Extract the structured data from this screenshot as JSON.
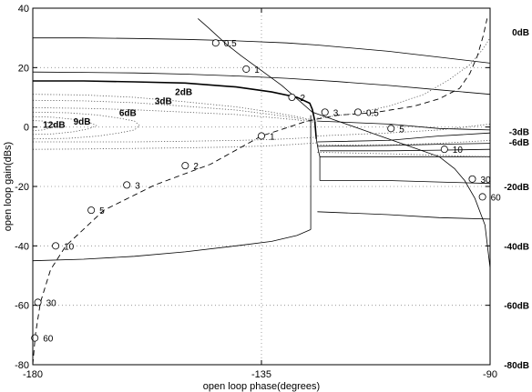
{
  "chart_data": {
    "type": "line",
    "title": "",
    "xlabel": "open loop phase(degrees)",
    "ylabel": "open loop gain(dBs)",
    "xlim": [
      -180,
      -90
    ],
    "ylim": [
      -80,
      40
    ],
    "grid": true,
    "x_ticks": [
      -180,
      -135,
      -90
    ],
    "y_ticks": [
      -80,
      -60,
      -40,
      -20,
      0,
      20,
      40
    ],
    "right_labels": [
      {
        "text": "0dB",
        "y": 32
      },
      {
        "text": "-3dB",
        "y": -1.5
      },
      {
        "text": "-6dB",
        "y": -5
      },
      {
        "text": "-20dB",
        "y": -20
      },
      {
        "text": "-40dB",
        "y": -40
      },
      {
        "text": "-60dB",
        "y": -60
      },
      {
        "text": "-80dB",
        "y": -80
      }
    ],
    "closed_loop_labels": [
      {
        "text": "2dB",
        "x": -152,
        "y": 12
      },
      {
        "text": "3dB",
        "x": -156,
        "y": 9
      },
      {
        "text": "6dB",
        "x": -163,
        "y": 5
      },
      {
        "text": "9dB",
        "x": -172,
        "y": 2
      },
      {
        "text": "12dB",
        "x": -178,
        "y": 1
      }
    ],
    "series": [
      {
        "name": "",
        "style": "solid-thin",
        "x": [
          -180,
          -170,
          -160,
          -150,
          -140,
          -130,
          -124,
          -120,
          -110,
          -100,
          -90
        ],
        "y": [
          30,
          30,
          29.8,
          29.5,
          29,
          28.3,
          27.6,
          27,
          25.5,
          23.5,
          21.5
        ]
      },
      {
        "name": "",
        "style": "solid-thin",
        "x": [
          -180,
          -170,
          -160,
          -150,
          -140,
          -130,
          -120,
          -110,
          -100,
          -90
        ],
        "y": [
          18.5,
          18.4,
          18.2,
          17.8,
          17.2,
          16.4,
          15.3,
          14,
          12.5,
          11
        ]
      },
      {
        "name": "",
        "style": "solid-bold",
        "x": [
          -180,
          -170,
          -160,
          -150,
          -140,
          -133,
          -128,
          -125.5,
          -125,
          -124.5,
          -124.2
        ],
        "y": [
          15.5,
          15.5,
          15.2,
          14.8,
          13.5,
          11.8,
          10,
          8,
          6,
          2,
          -4
        ]
      },
      {
        "name": "",
        "style": "solid-thin",
        "x": [
          -124.2,
          -123.8,
          -123.5,
          -123.5,
          -123.5
        ],
        "y": [
          -4,
          -8,
          -10,
          -14,
          -18
        ]
      },
      {
        "name": "",
        "style": "solid-thin",
        "x": [
          -180,
          -170,
          -160,
          -150,
          -140,
          -133,
          -128,
          -125.3
        ],
        "y": [
          -45,
          -44.5,
          -43.5,
          -42,
          -40,
          -38.5,
          -36.5,
          -34.5
        ]
      },
      {
        "name": "",
        "style": "solid-thin",
        "x": [
          -125.3,
          -125.3,
          -125.3
        ],
        "y": [
          -34.5,
          -15,
          4
        ]
      },
      {
        "name": "",
        "style": "solid-thin",
        "x": [
          -123.5,
          -110,
          -100,
          -90
        ],
        "y": [
          -8,
          -8,
          -7.8,
          -7.5
        ]
      },
      {
        "name": "",
        "style": "solid-thin",
        "x": [
          -123.5,
          -110,
          -100,
          -90
        ],
        "y": [
          -10,
          -10,
          -10,
          -10
        ]
      },
      {
        "name": "",
        "style": "solid-thin",
        "x": [
          -123.5,
          -110,
          -100,
          -90
        ],
        "y": [
          -18,
          -18,
          -18.5,
          -19
        ]
      },
      {
        "name": "",
        "style": "solid-thin",
        "x": [
          -124,
          -110,
          -100,
          -90
        ],
        "y": [
          -28.5,
          -29.5,
          -30.5,
          -31
        ]
      },
      {
        "name": "",
        "style": "solid-thin",
        "x": [
          -124,
          -110,
          -100,
          -90
        ],
        "y": [
          -5,
          -4.5,
          -3,
          -2
        ]
      },
      {
        "name": "",
        "style": "solid-thin",
        "x": [
          -124,
          -110,
          -100,
          -90
        ],
        "y": [
          -6.5,
          -6.2,
          -5.8,
          -5.5
        ]
      },
      {
        "name": "",
        "style": "solid-thin",
        "x": [
          -124,
          -110,
          -100,
          -90
        ],
        "y": [
          2,
          1,
          -0.5,
          -1
        ]
      },
      {
        "name": "",
        "style": "solid-thin",
        "x": [
          -147.5,
          -145.5,
          -142,
          -139,
          -135,
          -131,
          -128,
          -125,
          -120,
          -115,
          -110,
          -105,
          -100,
          -97,
          -95,
          -93,
          -91,
          -90
        ],
        "y": [
          36.5,
          33.5,
          28,
          24,
          19,
          14,
          9.5,
          5,
          2,
          -1,
          -4,
          -7,
          -10,
          -14,
          -18,
          -24,
          -33,
          -47.5
        ]
      },
      {
        "name": "",
        "style": "dashed",
        "x": [
          -180,
          -179.5,
          -178.5,
          -176.5,
          -173.5,
          -166,
          -156,
          -145,
          -135,
          -126,
          -120,
          -113,
          -105,
          -100,
          -96,
          -94,
          -92.5,
          -91.3,
          -90.6
        ],
        "y": [
          -80,
          -70,
          -59,
          -48,
          -40,
          -28,
          -19.5,
          -12.5,
          -3,
          2,
          4,
          4.8,
          7,
          9.5,
          13,
          18,
          24,
          31,
          36.5
        ]
      },
      {
        "name": "",
        "style": "dotted",
        "x": [
          -180,
          -170,
          -160,
          -150,
          -140,
          -133,
          -128,
          -124
        ],
        "y": [
          11,
          10.8,
          10,
          8.5,
          6.8,
          5,
          3.5,
          2
        ]
      },
      {
        "name": "",
        "style": "dotted",
        "x": [
          -180,
          -170,
          -160,
          -150,
          -140,
          -133,
          -128,
          -124
        ],
        "y": [
          9,
          8.8,
          8.2,
          7,
          5.7,
          4.2,
          3,
          1.8
        ]
      },
      {
        "name": "",
        "style": "dotted",
        "x": [
          -180,
          -170,
          -160,
          -150,
          -140,
          -133,
          -128,
          -124
        ],
        "y": [
          6.5,
          6.3,
          5.8,
          5,
          4.2,
          3.2,
          2.4,
          1.5
        ]
      },
      {
        "name": "",
        "style": "dotted",
        "x": [
          -180,
          -173,
          -167,
          -163,
          -160,
          -159,
          -160,
          -163,
          -167,
          -173,
          -180
        ],
        "y": [
          5,
          4.8,
          4,
          3,
          2,
          0.5,
          -1,
          -2,
          -3,
          -3.8,
          -4
        ]
      },
      {
        "name": "",
        "style": "dotted",
        "x": [
          -180,
          -176,
          -172,
          -169,
          -167.5,
          -169,
          -172,
          -176,
          -180
        ],
        "y": [
          3.5,
          3.3,
          2.6,
          1.6,
          0.5,
          -0.6,
          -1.6,
          -2.3,
          -2.5
        ]
      },
      {
        "name": "",
        "style": "dotted",
        "x": [
          -180,
          -178,
          -176.5,
          -175.5,
          -176.5,
          -178,
          -180
        ],
        "y": [
          2.2,
          2,
          1.3,
          0.5,
          -0.3,
          -1,
          -1.2
        ]
      },
      {
        "name": "",
        "style": "dotted",
        "x": [
          -180,
          -170,
          -160,
          -150,
          -140,
          -133,
          -128,
          -124
        ],
        "y": [
          -5,
          -5,
          -5,
          -4.8,
          -4.5,
          -4.2,
          -3.8,
          -3.4
        ]
      },
      {
        "name": "",
        "style": "dotted",
        "x": [
          -180,
          -170,
          -160,
          -150,
          -140,
          -133,
          -128,
          -124
        ],
        "y": [
          -7.5,
          -7.4,
          -7.2,
          -7,
          -6.7,
          -6.3,
          -5.8,
          -5.3
        ]
      },
      {
        "name": "",
        "style": "dotted",
        "x": [
          -124,
          -117,
          -110,
          -103,
          -98,
          -94,
          -91.5,
          -90
        ],
        "y": [
          3,
          4.5,
          7,
          11,
          16,
          21,
          26,
          30
        ]
      },
      {
        "name": "",
        "style": "dotted",
        "x": [
          -124,
          -110,
          -100,
          -95,
          -90
        ],
        "y": [
          -3,
          -2,
          -1,
          0,
          1
        ]
      },
      {
        "name": "",
        "style": "dotted",
        "x": [
          -124,
          -110,
          -100,
          -95,
          -90
        ],
        "y": [
          -6,
          -6,
          -5.5,
          -5,
          -4.5
        ]
      },
      {
        "name": "",
        "style": "dotted",
        "x": [
          -124,
          -110,
          -100,
          -95,
          -90
        ],
        "y": [
          -8.5,
          -9,
          -9.5,
          -9.8,
          -10
        ]
      }
    ],
    "markers": [
      {
        "label": "0.5",
        "x": -144,
        "y": 28.3
      },
      {
        "label": "1",
        "x": -138,
        "y": 19.5
      },
      {
        "label": "2",
        "x": -129,
        "y": 10
      },
      {
        "label": "3",
        "x": -122.5,
        "y": 5
      },
      {
        "label": "5",
        "x": -109.5,
        "y": -0.5
      },
      {
        "label": "10",
        "x": -99,
        "y": -7.5
      },
      {
        "label": "30",
        "x": -93.5,
        "y": -17.5
      },
      {
        "label": "60",
        "x": -91.5,
        "y": -23.5
      },
      {
        "label": "0.5",
        "x": -116,
        "y": 5
      },
      {
        "label": "1",
        "x": -135,
        "y": -3
      },
      {
        "label": "2",
        "x": -150,
        "y": -13
      },
      {
        "label": "3",
        "x": -161.5,
        "y": -19.5
      },
      {
        "label": "5",
        "x": -168.5,
        "y": -28
      },
      {
        "label": "10",
        "x": -175.5,
        "y": -40
      },
      {
        "label": "30",
        "x": -179,
        "y": -59
      },
      {
        "label": "60",
        "x": -179.6,
        "y": -71
      }
    ]
  }
}
